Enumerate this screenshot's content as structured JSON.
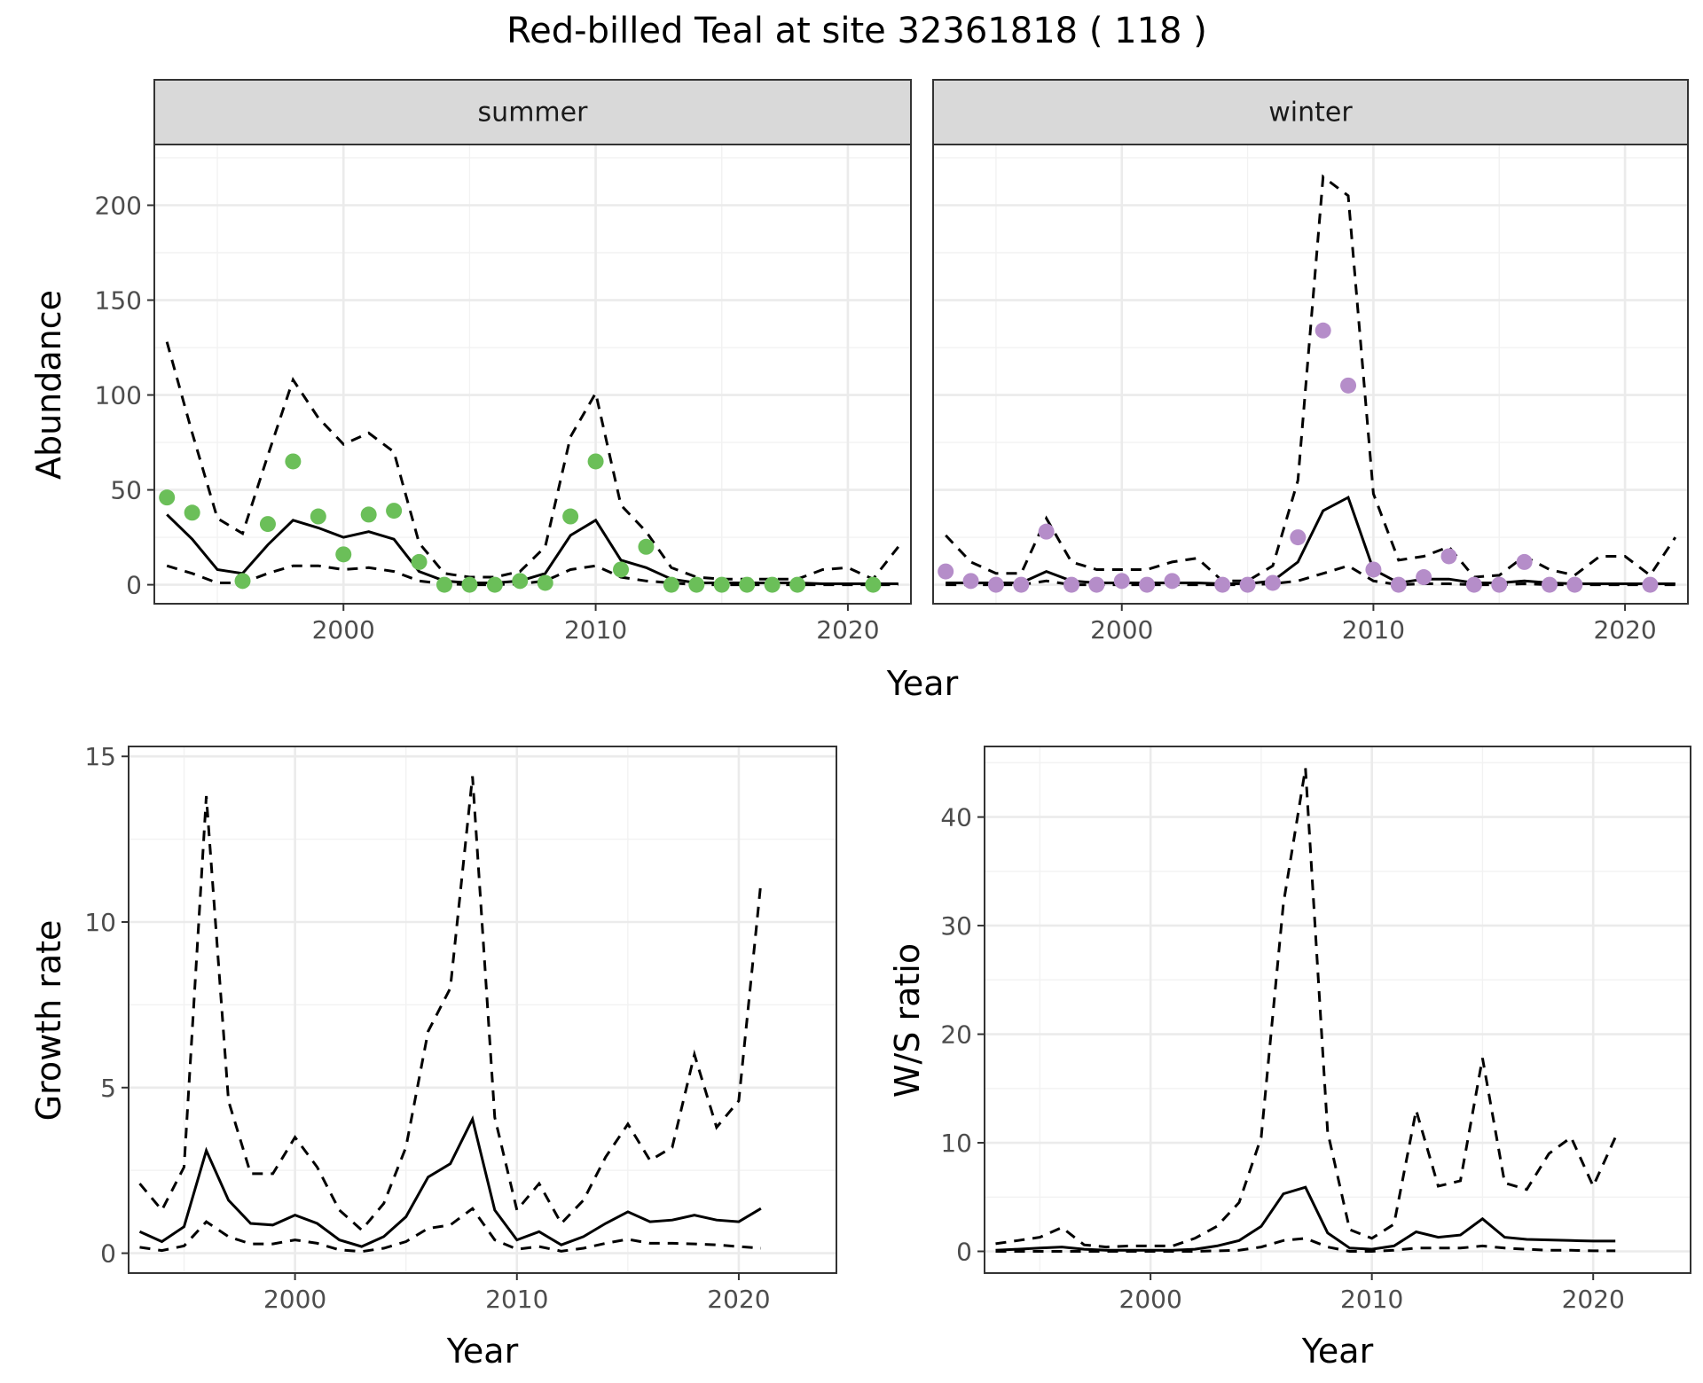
{
  "title": "Red-billed Teal at site 32361818 ( 118 )",
  "abundance_xlabel": "Year",
  "chart_data": [
    {
      "id": "abundance-summer",
      "type": "line",
      "strip": "summer",
      "ylabel": "Abundance",
      "xlabel": "",
      "xlim": [
        1992.5,
        2022.5
      ],
      "ylim": [
        -10,
        232
      ],
      "xticks": [
        2000,
        2010,
        2020
      ],
      "yticks": [
        0,
        50,
        100,
        150,
        200
      ],
      "grid": true,
      "point_color": "#6bbf59",
      "estimate": {
        "x": [
          1993,
          1994,
          1995,
          1996,
          1997,
          1998,
          1999,
          2000,
          2001,
          2002,
          2003,
          2004,
          2005,
          2006,
          2007,
          2008,
          2009,
          2010,
          2011,
          2012,
          2013,
          2014,
          2015,
          2016,
          2017,
          2018,
          2019,
          2020,
          2021,
          2022
        ],
        "y": [
          37,
          24,
          8,
          6,
          21,
          34,
          30,
          25,
          28,
          24,
          7,
          2,
          1,
          1,
          2,
          6,
          26,
          34,
          13,
          9,
          3,
          1,
          1,
          1,
          1,
          1,
          0.5,
          0.5,
          0.5,
          0.5
        ]
      },
      "upper": {
        "x": [
          1993,
          1994,
          1995,
          1996,
          1997,
          1998,
          1999,
          2000,
          2001,
          2002,
          2003,
          2004,
          2005,
          2006,
          2007,
          2008,
          2009,
          2010,
          2011,
          2012,
          2013,
          2014,
          2015,
          2016,
          2017,
          2018,
          2019,
          2020,
          2021,
          2022
        ],
        "y": [
          128,
          80,
          35,
          27,
          68,
          108,
          88,
          74,
          80,
          70,
          22,
          6,
          4,
          4,
          7,
          20,
          78,
          101,
          42,
          28,
          9,
          4,
          3,
          3,
          3,
          3,
          8,
          9,
          3,
          20
        ]
      },
      "lower": {
        "x": [
          1993,
          1994,
          1995,
          1996,
          1997,
          1998,
          1999,
          2000,
          2001,
          2002,
          2003,
          2004,
          2005,
          2006,
          2007,
          2008,
          2009,
          2010,
          2011,
          2012,
          2013,
          2014,
          2015,
          2016,
          2017,
          2018,
          2019,
          2020,
          2021,
          2022
        ],
        "y": [
          10,
          6,
          1,
          1,
          6,
          10,
          10,
          8,
          9,
          7,
          2,
          0.5,
          0,
          0,
          0.5,
          2,
          8,
          10,
          4,
          2,
          1,
          0,
          0,
          0,
          0,
          0,
          0,
          0,
          0,
          0
        ]
      },
      "points": {
        "x": [
          1993,
          1994,
          1996,
          1997,
          1998,
          1999,
          2000,
          2001,
          2002,
          2003,
          2004,
          2005,
          2006,
          2007,
          2008,
          2009,
          2010,
          2011,
          2012,
          2013,
          2014,
          2015,
          2016,
          2017,
          2018,
          2021
        ],
        "y": [
          46,
          38,
          2,
          32,
          65,
          36,
          16,
          37,
          39,
          12,
          0,
          0,
          0,
          2,
          1,
          36,
          65,
          8,
          20,
          0,
          0,
          0,
          0,
          0,
          0,
          0
        ]
      }
    },
    {
      "id": "abundance-winter",
      "type": "line",
      "strip": "winter",
      "ylabel": "",
      "xlabel": "",
      "xlim": [
        1992.5,
        2022.5
      ],
      "ylim": [
        -10,
        232
      ],
      "xticks": [
        2000,
        2010,
        2020
      ],
      "yticks": [
        0,
        50,
        100,
        150,
        200
      ],
      "grid": true,
      "point_color": "#b58dc9",
      "estimate": {
        "x": [
          1993,
          1994,
          1995,
          1996,
          1997,
          1998,
          1999,
          2000,
          2001,
          2002,
          2003,
          2004,
          2005,
          2006,
          2007,
          2008,
          2009,
          2010,
          2011,
          2012,
          2013,
          2014,
          2015,
          2016,
          2017,
          2018,
          2019,
          2020,
          2021,
          2022
        ],
        "y": [
          1,
          1,
          1,
          1,
          7,
          2,
          1,
          1,
          1,
          1,
          1,
          0.5,
          0.5,
          2,
          12,
          39,
          46,
          8,
          1,
          3,
          3,
          1,
          1,
          2,
          1,
          0.5,
          0.5,
          0.5,
          0.5,
          0.5
        ]
      },
      "upper": {
        "x": [
          1993,
          1994,
          1995,
          1996,
          1997,
          1998,
          1999,
          2000,
          2001,
          2002,
          2003,
          2004,
          2005,
          2006,
          2007,
          2008,
          2009,
          2010,
          2011,
          2012,
          2013,
          2014,
          2015,
          2016,
          2017,
          2018,
          2019,
          2020,
          2021,
          2022
        ],
        "y": [
          26,
          12,
          6,
          6,
          35,
          12,
          8,
          8,
          8,
          12,
          14,
          2,
          2,
          10,
          55,
          215,
          205,
          48,
          13,
          15,
          20,
          4,
          5,
          15,
          8,
          5,
          15,
          15,
          5,
          25
        ]
      },
      "lower": {
        "x": [
          1993,
          1994,
          1995,
          1996,
          1997,
          1998,
          1999,
          2000,
          2001,
          2002,
          2003,
          2004,
          2005,
          2006,
          2007,
          2008,
          2009,
          2010,
          2011,
          2012,
          2013,
          2014,
          2015,
          2016,
          2017,
          2018,
          2019,
          2020,
          2021,
          2022
        ],
        "y": [
          0,
          0,
          0,
          0,
          2,
          0,
          0,
          0,
          0,
          0,
          0,
          0,
          0,
          0.5,
          2,
          6,
          10,
          2,
          0,
          0.5,
          0.5,
          0,
          0,
          0.5,
          0,
          0,
          0,
          0,
          0,
          0
        ]
      },
      "points": {
        "x": [
          1993,
          1994,
          1995,
          1996,
          1997,
          1998,
          1999,
          2000,
          2001,
          2002,
          2004,
          2005,
          2006,
          2007,
          2008,
          2009,
          2010,
          2011,
          2012,
          2013,
          2014,
          2015,
          2016,
          2017,
          2018,
          2021
        ],
        "y": [
          7,
          2,
          0,
          0,
          28,
          0,
          0,
          2,
          0,
          2,
          0,
          0,
          1,
          25,
          134,
          105,
          8,
          0,
          4,
          15,
          0,
          0,
          12,
          0,
          0,
          0
        ]
      }
    },
    {
      "id": "growth-rate",
      "type": "line",
      "strip": "",
      "ylabel": "Growth rate",
      "xlabel": "Year",
      "xlim": [
        1992.5,
        2024.4
      ],
      "ylim": [
        -0.6,
        15.3
      ],
      "xticks": [
        2000,
        2010,
        2020
      ],
      "yticks": [
        0,
        5,
        10,
        15
      ],
      "grid": true,
      "estimate": {
        "x": [
          1993,
          1994,
          1995,
          1996,
          1997,
          1998,
          1999,
          2000,
          2001,
          2002,
          2003,
          2004,
          2005,
          2006,
          2007,
          2008,
          2009,
          2010,
          2011,
          2012,
          2013,
          2014,
          2015,
          2016,
          2017,
          2018,
          2019,
          2020,
          2021
        ],
        "y": [
          0.65,
          0.35,
          0.8,
          3.1,
          1.6,
          0.9,
          0.85,
          1.15,
          0.9,
          0.4,
          0.2,
          0.5,
          1.1,
          2.3,
          2.7,
          4.05,
          1.3,
          0.4,
          0.65,
          0.25,
          0.5,
          0.9,
          1.25,
          0.95,
          1.0,
          1.15,
          1.0,
          0.95,
          1.35
        ]
      },
      "upper": {
        "x": [
          1993,
          1994,
          1995,
          1996,
          1997,
          1998,
          1999,
          2000,
          2001,
          2002,
          2003,
          2004,
          2005,
          2006,
          2007,
          2008,
          2009,
          2010,
          2011,
          2012,
          2013,
          2014,
          2015,
          2016,
          2017,
          2018,
          2019,
          2020,
          2021
        ],
        "y": [
          2.1,
          1.3,
          2.6,
          13.8,
          4.6,
          2.4,
          2.4,
          3.5,
          2.6,
          1.3,
          0.7,
          1.5,
          3.2,
          6.7,
          8.0,
          14.4,
          4.1,
          1.3,
          2.1,
          0.9,
          1.6,
          2.9,
          3.9,
          2.8,
          3.2,
          6.0,
          3.8,
          4.6,
          11.2
        ]
      },
      "lower": {
        "x": [
          1993,
          1994,
          1995,
          1996,
          1997,
          1998,
          1999,
          2000,
          2001,
          2002,
          2003,
          2004,
          2005,
          2006,
          2007,
          2008,
          2009,
          2010,
          2011,
          2012,
          2013,
          2014,
          2015,
          2016,
          2017,
          2018,
          2019,
          2020,
          2021
        ],
        "y": [
          0.18,
          0.08,
          0.22,
          0.95,
          0.5,
          0.28,
          0.28,
          0.4,
          0.3,
          0.1,
          0.05,
          0.15,
          0.35,
          0.75,
          0.85,
          1.35,
          0.4,
          0.12,
          0.2,
          0.06,
          0.15,
          0.3,
          0.42,
          0.3,
          0.3,
          0.28,
          0.25,
          0.2,
          0.15
        ]
      }
    },
    {
      "id": "ws-ratio",
      "type": "line",
      "strip": "",
      "ylabel": "W/S ratio",
      "xlabel": "Year",
      "xlim": [
        1992.5,
        2024.4
      ],
      "ylim": [
        -2,
        46.5
      ],
      "xticks": [
        2000,
        2010,
        2020
      ],
      "yticks": [
        0,
        10,
        20,
        30,
        40
      ],
      "grid": true,
      "estimate": {
        "x": [
          1993,
          1994,
          1995,
          1996,
          1997,
          1998,
          1999,
          2000,
          2001,
          2002,
          2003,
          2004,
          2005,
          2006,
          2007,
          2008,
          2009,
          2010,
          2011,
          2012,
          2013,
          2014,
          2015,
          2016,
          2017,
          2018,
          2019,
          2020,
          2021
        ],
        "y": [
          0.1,
          0.2,
          0.3,
          0.4,
          0.2,
          0.1,
          0.1,
          0.1,
          0.1,
          0.2,
          0.5,
          1.0,
          2.3,
          5.3,
          5.9,
          1.7,
          0.3,
          0.2,
          0.5,
          1.8,
          1.3,
          1.5,
          3.0,
          1.3,
          1.1,
          1.05,
          1.0,
          0.95,
          0.95
        ]
      },
      "upper": {
        "x": [
          1993,
          1994,
          1995,
          1996,
          1997,
          1998,
          1999,
          2000,
          2001,
          2002,
          2003,
          2004,
          2005,
          2006,
          2007,
          2008,
          2009,
          2010,
          2011,
          2012,
          2013,
          2014,
          2015,
          2016,
          2017,
          2018,
          2019,
          2020,
          2021
        ],
        "y": [
          0.7,
          1.0,
          1.3,
          2.2,
          0.6,
          0.4,
          0.5,
          0.5,
          0.5,
          1.2,
          2.3,
          4.5,
          10.5,
          32,
          44.5,
          11,
          2.0,
          1.2,
          2.5,
          13,
          6,
          6.5,
          17.8,
          6.3,
          5.7,
          9,
          10.5,
          6,
          10.5
        ]
      },
      "lower": {
        "x": [
          1993,
          1994,
          1995,
          1996,
          1997,
          1998,
          1999,
          2000,
          2001,
          2002,
          2003,
          2004,
          2005,
          2006,
          2007,
          2008,
          2009,
          2010,
          2011,
          2012,
          2013,
          2014,
          2015,
          2016,
          2017,
          2018,
          2019,
          2020,
          2021
        ],
        "y": [
          0,
          0,
          0,
          0,
          0,
          0,
          0,
          0,
          0,
          0,
          0.05,
          0.1,
          0.4,
          1.0,
          1.2,
          0.4,
          0,
          0,
          0.1,
          0.3,
          0.3,
          0.3,
          0.5,
          0.3,
          0.2,
          0.1,
          0.1,
          0.05,
          0.05
        ]
      }
    }
  ]
}
